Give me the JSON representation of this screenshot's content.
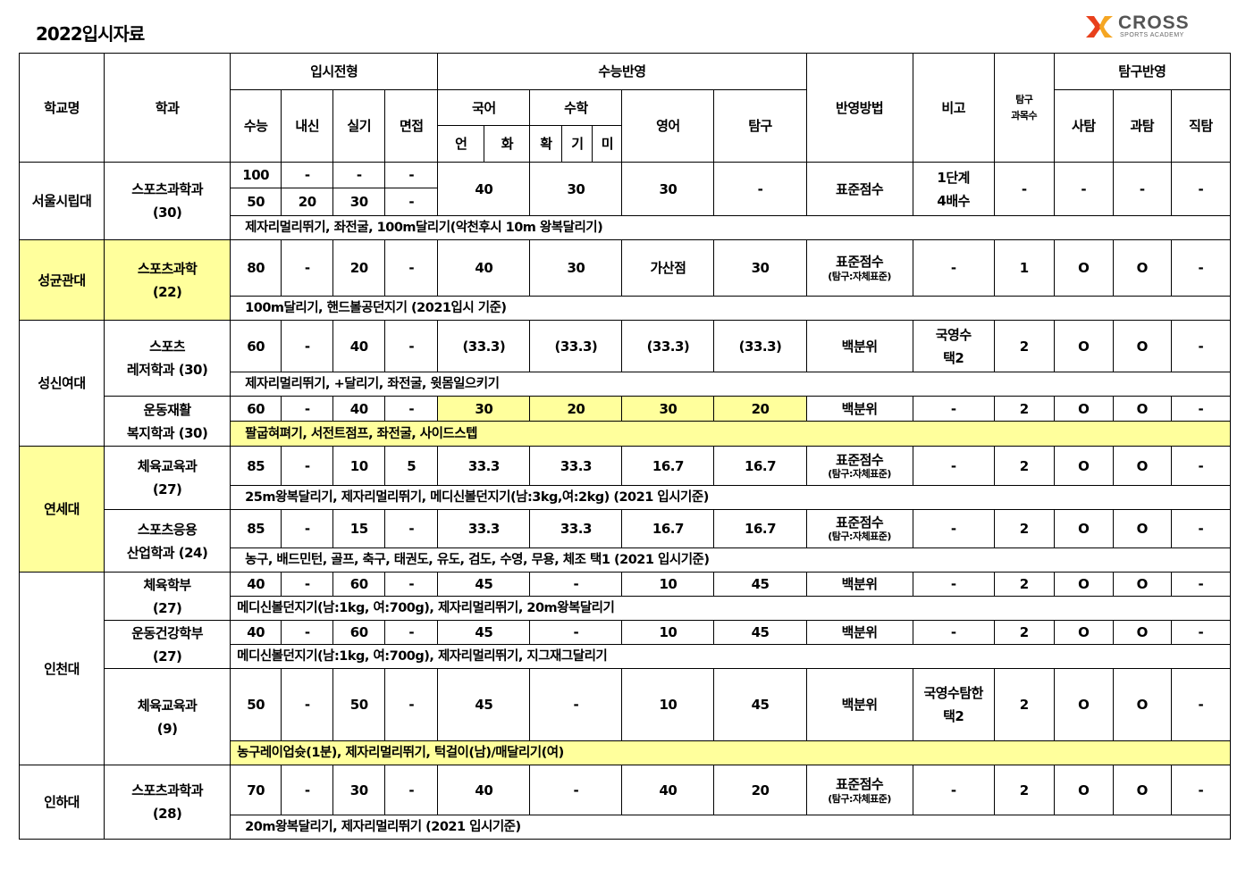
{
  "title": "2022입시자료",
  "logo": {
    "brand": "CROSS",
    "sub": "SPORTS ACADEMY",
    "colors": [
      "#e8401c",
      "#f5a623",
      "#888888"
    ]
  },
  "highlight_color": "#ffff9c",
  "header": {
    "school": "학교명",
    "dept": "학과",
    "admission": "입시전형",
    "admission_cols": [
      "수능",
      "내신",
      "실기",
      "면접"
    ],
    "csat": "수능반영",
    "korean": "국어",
    "korean_sub": [
      "언",
      "화"
    ],
    "math": "수학",
    "math_sub": [
      "확",
      "기",
      "미"
    ],
    "english": "영어",
    "inquiry": "탐구",
    "method": "반영방법",
    "note": "비고",
    "count": [
      "탐구",
      "과목수"
    ],
    "inquiry_reflect": "탐구반영",
    "inquiry_cols": [
      "사탐",
      "과탐",
      "직탐"
    ]
  },
  "schools": [
    {
      "name": "서울시립대",
      "depts": [
        {
          "name": "스포츠과학과",
          "quota": "(30)",
          "susi": [
            [
              "100",
              "-",
              "-",
              "-"
            ],
            [
              "50",
              "20",
              "30",
              "-"
            ]
          ],
          "korean": "40",
          "math": "30",
          "english": "30",
          "inquiry": "-",
          "method": "표준점수",
          "note": [
            "1단계",
            "4배수"
          ],
          "count": "-",
          "social": "-",
          "science": "-",
          "vocational": "-",
          "memo": "제자리멀리뛰기, 좌전굴, 100m달리기(악천후시 10m 왕복달리기)"
        }
      ]
    },
    {
      "name": "성균관대",
      "depts": [
        {
          "name": "스포츠과학",
          "quota": "(22)",
          "susi": [
            [
              "80",
              "-",
              "20",
              "-"
            ]
          ],
          "korean": "40",
          "math": "30",
          "english": "가산점",
          "inquiry": "30",
          "method": "표준점수",
          "method_sub": "(탐구:자체표준)",
          "note": [
            "-"
          ],
          "count": "1",
          "social": "O",
          "science": "O",
          "vocational": "-",
          "memo": "100m달리기, 핸드볼공던지기 (2021입시 기준)"
        }
      ]
    },
    {
      "name": "성신여대",
      "depts": [
        {
          "name": "스포츠",
          "name2": "레저학과 (30)",
          "susi": [
            [
              "60",
              "-",
              "40",
              "-"
            ]
          ],
          "korean": "(33.3)",
          "math": "(33.3)",
          "english": "(33.3)",
          "inquiry": "(33.3)",
          "method": "백분위",
          "note": [
            "국영수",
            "택2"
          ],
          "count": "2",
          "social": "O",
          "science": "O",
          "vocational": "-",
          "memo": "제자리멀리뛰기, +달리기, 좌전굴, 윗몸일으키기"
        },
        {
          "name": "운동재활",
          "name2": "복지학과 (30)",
          "susi": [
            [
              "60",
              "-",
              "40",
              "-"
            ]
          ],
          "korean": "30",
          "math": "20",
          "english": "30",
          "inquiry": "20",
          "method": "백분위",
          "note": [
            "-"
          ],
          "count": "2",
          "social": "O",
          "science": "O",
          "vocational": "-",
          "memo": "팔굽혀펴기, 서전트점프, 좌전굴, 사이드스텝"
        }
      ]
    },
    {
      "name": "연세대",
      "depts": [
        {
          "name": "체육교육과",
          "quota": "(27)",
          "susi": [
            [
              "85",
              "-",
              "10",
              "5"
            ]
          ],
          "korean": "33.3",
          "math": "33.3",
          "english": "16.7",
          "inquiry": "16.7",
          "method": "표준점수",
          "method_sub": "(탐구:자체표준)",
          "note": [
            "-"
          ],
          "count": "2",
          "social": "O",
          "science": "O",
          "vocational": "-",
          "memo": "25m왕복달리기, 제자리멀리뛰기, 메디신볼던지기(남:3kg,여:2kg)   (2021  입시기준)"
        },
        {
          "name": "스포츠응용",
          "name2": "산업학과 (24)",
          "susi": [
            [
              "85",
              "-",
              "15",
              "-"
            ]
          ],
          "korean": "33.3",
          "math": "33.3",
          "english": "16.7",
          "inquiry": "16.7",
          "method": "표준점수",
          "method_sub": "(탐구:자체표준)",
          "note": [
            "-"
          ],
          "count": "2",
          "social": "O",
          "science": "O",
          "vocational": "-",
          "memo": "농구, 배드민턴, 골프, 축구, 태권도, 유도, 검도, 수영, 무용, 체조 택1 (2021 입시기준)"
        }
      ]
    },
    {
      "name": "인천대",
      "depts": [
        {
          "name": "체육학부",
          "quota": "(27)",
          "susi": [
            [
              "40",
              "-",
              "60",
              "-"
            ]
          ],
          "korean": "45",
          "math": "-",
          "english": "10",
          "inquiry": "45",
          "method": "백분위",
          "note": [
            "-"
          ],
          "count": "2",
          "social": "O",
          "science": "O",
          "vocational": "-",
          "memo": "메디신볼던지기(남:1kg, 여:700g), 제자리멀리뛰기, 20m왕복달리기"
        },
        {
          "name": "운동건강학부",
          "quota": "(27)",
          "susi": [
            [
              "40",
              "-",
              "60",
              "-"
            ]
          ],
          "korean": "45",
          "math": "-",
          "english": "10",
          "inquiry": "45",
          "method": "백분위",
          "note": [
            "-"
          ],
          "count": "2",
          "social": "O",
          "science": "O",
          "vocational": "-",
          "memo": "메디신볼던지기(남:1kg, 여:700g), 제자리멀리뛰기, 지그재그달리기"
        },
        {
          "name": "체육교육과",
          "quota": "(9)",
          "susi": [
            [
              "50",
              "-",
              "50",
              "-"
            ]
          ],
          "korean": "45",
          "math": "-",
          "english": "10",
          "inquiry": "45",
          "method": "백분위",
          "note": [
            "국영수탐한",
            "택2"
          ],
          "count": "2",
          "social": "O",
          "science": "O",
          "vocational": "-",
          "memo": "농구레이업슛(1분), 제자리멀리뛰기, 턱걸이(남)/매달리기(여)"
        }
      ]
    },
    {
      "name": "인하대",
      "depts": [
        {
          "name": "스포츠과학과",
          "quota": "(28)",
          "susi": [
            [
              "70",
              "-",
              "30",
              "-"
            ]
          ],
          "korean": "40",
          "math": "-",
          "english": "40",
          "inquiry": "20",
          "method": "표준점수",
          "method_sub": "(탐구:자체표준)",
          "note": [
            "-"
          ],
          "count": "2",
          "social": "O",
          "science": "O",
          "vocational": "-",
          "memo": "20m왕복달리기, 제자리멀리뛰기 (2021  입시기준)"
        }
      ]
    }
  ]
}
